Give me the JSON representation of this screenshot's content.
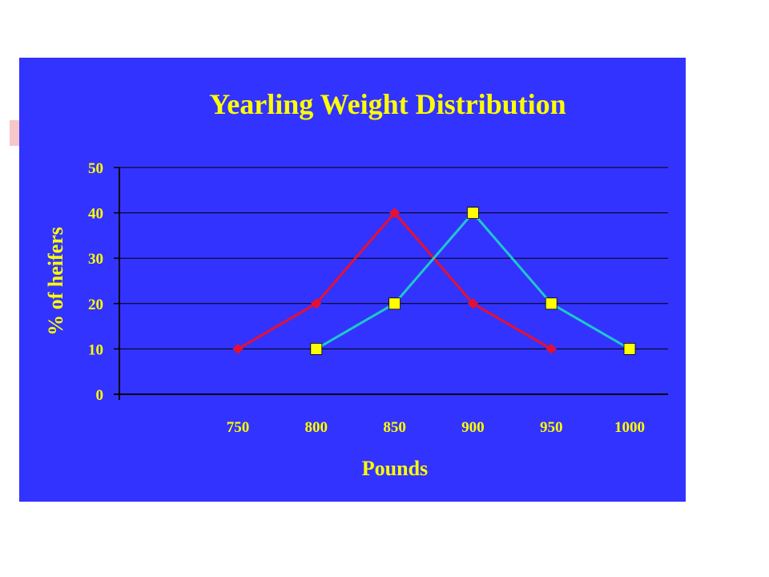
{
  "chart_data": {
    "type": "line",
    "title": "Yearling Weight Distribution",
    "xlabel": "Pounds",
    "ylabel": "% of heifers",
    "categories": [
      "750",
      "800",
      "850",
      "900",
      "950",
      "1000"
    ],
    "ylim": [
      0,
      50
    ],
    "yticks": [
      "0",
      "10",
      "20",
      "30",
      "40",
      "50"
    ],
    "grid": true,
    "legend": "none",
    "series": [
      {
        "values": [
          10,
          20,
          40,
          20,
          10,
          null
        ],
        "color": "#e8102e",
        "marker": "diamond"
      },
      {
        "values": [
          null,
          10,
          20,
          40,
          20,
          10
        ],
        "color": "#1ec8c8",
        "marker": "square",
        "marker_color": "#ffff00"
      }
    ]
  },
  "colors": {
    "panel_background": "#3333ff",
    "text": "#ffff00",
    "grid_and_axes": "#000000"
  }
}
